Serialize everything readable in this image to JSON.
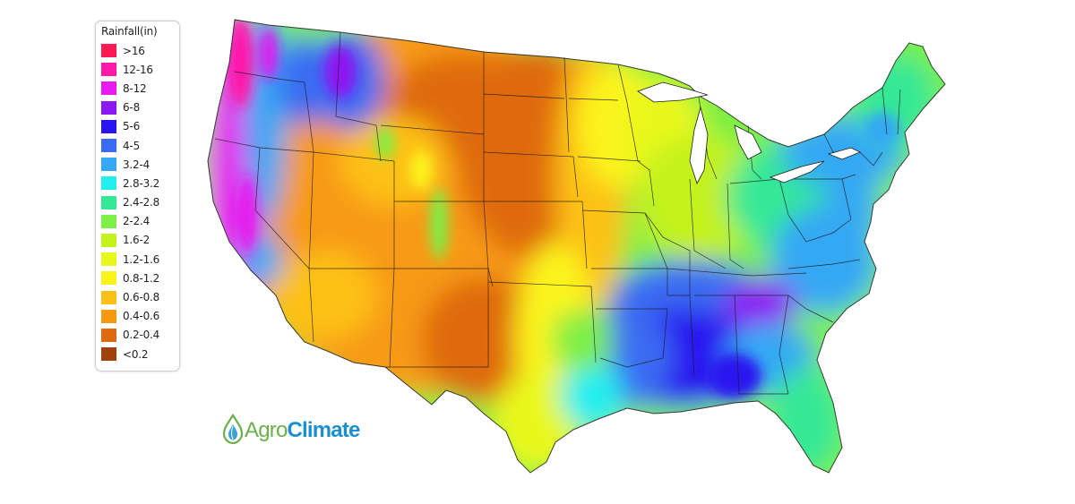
{
  "legend": {
    "title": "Rainfall(in)",
    "items": [
      {
        "label": ">16",
        "color": "#ff1a55"
      },
      {
        "label": "12-16",
        "color": "#ff19a8"
      },
      {
        "label": "8-12",
        "color": "#e619ef"
      },
      {
        "label": "6-8",
        "color": "#8d19f2"
      },
      {
        "label": "5-6",
        "color": "#2a14f0"
      },
      {
        "label": "4-5",
        "color": "#3a6cf2"
      },
      {
        "label": "3.2-4",
        "color": "#36a8f4"
      },
      {
        "label": "2.8-3.2",
        "color": "#23eef0"
      },
      {
        "label": "2.4-2.8",
        "color": "#35e895"
      },
      {
        "label": "2-2.4",
        "color": "#7def45"
      },
      {
        "label": "1.6-2",
        "color": "#c4f21b"
      },
      {
        "label": "1.2-1.6",
        "color": "#e9f81c"
      },
      {
        "label": "0.8-1.2",
        "color": "#fbf41b"
      },
      {
        "label": "0.6-0.8",
        "color": "#fdc115"
      },
      {
        "label": "0.4-0.6",
        "color": "#f79a12"
      },
      {
        "label": "0.2-0.4",
        "color": "#df6a0e"
      },
      {
        "label": "<0.2",
        "color": "#a1420c"
      }
    ]
  },
  "logo": {
    "part1": "Agro",
    "part2": "Climate",
    "icon": "leaf-drop-icon",
    "colors": {
      "green": "#6ab04c",
      "blue": "#1b8fcf"
    }
  },
  "map": {
    "region": "contiguous-united-states",
    "boundary_color": "#1a1a1a"
  }
}
